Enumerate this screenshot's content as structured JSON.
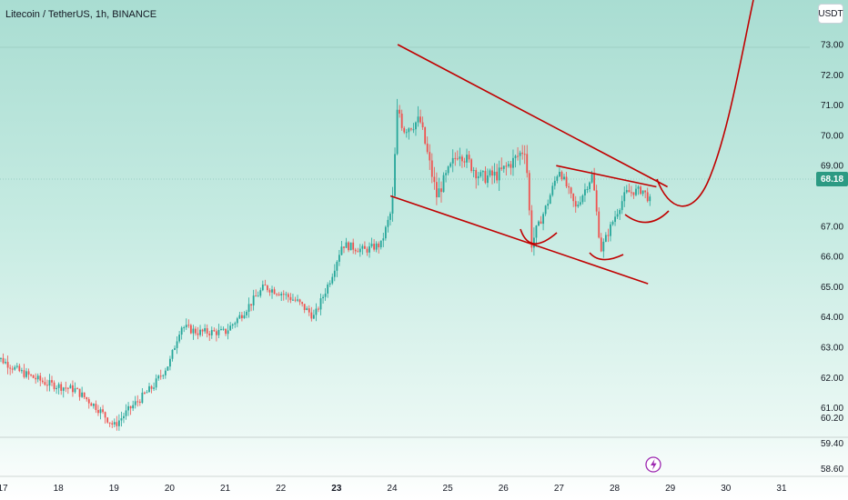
{
  "header": {
    "title": "Litecoin / TetherUS, 1h, BINANCE",
    "currency": "USDT",
    "last_price": "68.18"
  },
  "chart_data": {
    "type": "candlestick",
    "symbol": "Litecoin / TetherUS",
    "interval": "1h",
    "exchange": "BINANCE",
    "colors": {
      "up": "#26a69a",
      "down": "#ef5350",
      "drawing": "#c00000",
      "price_tag": "#2c9a83"
    },
    "y_ticks": [
      "73.00",
      "72.00",
      "71.00",
      "70.00",
      "69.00",
      "67.00",
      "66.00",
      "65.00",
      "64.00",
      "63.00",
      "62.00",
      "61.00",
      "60.20",
      "59.40",
      "58.60"
    ],
    "x_ticks": [
      "17",
      "18",
      "19",
      "20",
      "21",
      "22",
      "23",
      "24",
      "25",
      "26",
      "27",
      "28",
      "29",
      "30",
      "31"
    ],
    "bold_x_ticks": [
      "23"
    ],
    "last_price": 68.18,
    "path_keypoints": [
      [
        16.8,
        62.8
      ],
      [
        17.3,
        62.2
      ],
      [
        17.8,
        61.8
      ],
      [
        18.3,
        61.6
      ],
      [
        18.7,
        61.0
      ],
      [
        19.0,
        60.4
      ],
      [
        19.3,
        61.0
      ],
      [
        19.7,
        61.7
      ],
      [
        20.0,
        62.5
      ],
      [
        20.2,
        63.7
      ],
      [
        20.5,
        63.5
      ],
      [
        21.0,
        63.5
      ],
      [
        21.3,
        64.1
      ],
      [
        21.7,
        65.0
      ],
      [
        22.0,
        64.8
      ],
      [
        22.3,
        64.5
      ],
      [
        22.6,
        64.0
      ],
      [
        22.9,
        65.3
      ],
      [
        23.1,
        66.4
      ],
      [
        23.5,
        66.2
      ],
      [
        23.8,
        66.4
      ],
      [
        24.0,
        67.6
      ],
      [
        24.1,
        71.0
      ],
      [
        24.2,
        70.2
      ],
      [
        24.5,
        70.5
      ],
      [
        24.8,
        68.0
      ],
      [
        25.2,
        69.5
      ],
      [
        25.6,
        68.6
      ],
      [
        25.9,
        68.7
      ],
      [
        26.2,
        69.2
      ],
      [
        26.4,
        69.6
      ],
      [
        26.5,
        66.4
      ],
      [
        26.8,
        67.8
      ],
      [
        27.0,
        68.9
      ],
      [
        27.3,
        67.6
      ],
      [
        27.6,
        68.7
      ],
      [
        27.75,
        66.2
      ],
      [
        28.0,
        67.3
      ],
      [
        28.2,
        68.1
      ],
      [
        28.5,
        68.2
      ],
      [
        28.65,
        67.8
      ]
    ],
    "pattern": {
      "channel_upper": [
        [
          24.1,
          73.0
        ],
        [
          28.95,
          68.3
        ]
      ],
      "channel_lower": [
        [
          23.97,
          68.0
        ],
        [
          28.6,
          65.1
        ]
      ],
      "inner_resistance": [
        [
          26.95,
          69.0
        ],
        [
          28.75,
          68.3
        ]
      ],
      "projection": "breakout curve rising above 73.00 after 29"
    }
  }
}
